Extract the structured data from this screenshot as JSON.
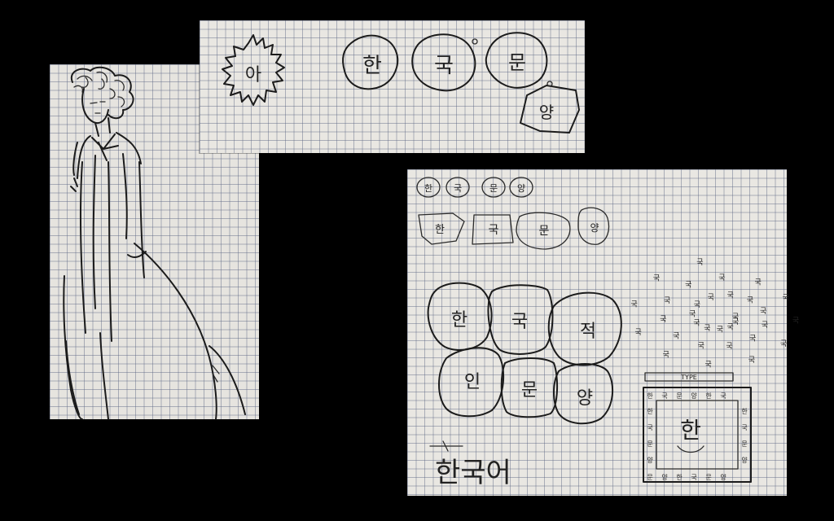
{
  "sketch_top": {
    "glyphs": [
      "아",
      "한",
      "국",
      "문",
      "양"
    ]
  },
  "sketch_right": {
    "small_row": [
      "한",
      "국",
      "문",
      "양"
    ],
    "mid_row": [
      "한",
      "국",
      "문",
      "양"
    ],
    "big_grid": [
      "한",
      "국",
      "적",
      "인",
      "문",
      "양"
    ],
    "bottom_text": "한국어",
    "spiral_char": "국",
    "type_label": "TYPE",
    "type_char": "한"
  }
}
